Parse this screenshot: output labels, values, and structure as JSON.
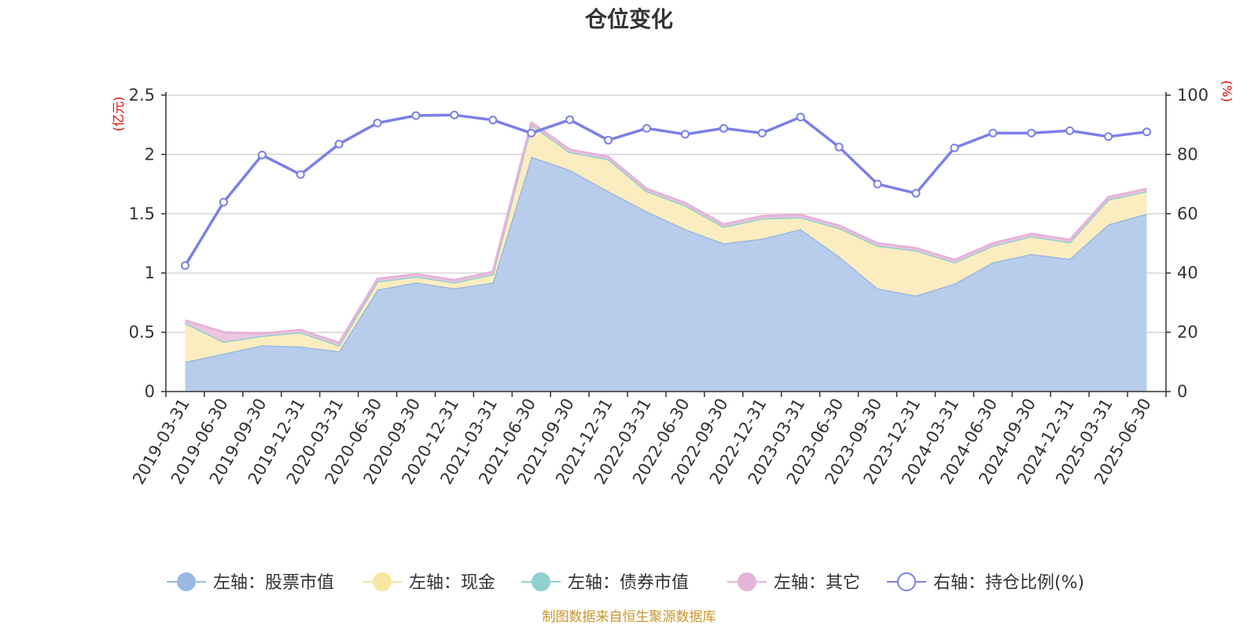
{
  "chart_data": {
    "type": "area",
    "title": "仓位变化",
    "left_unit": "(亿元)",
    "right_unit": "(%)",
    "source": "制图数据来自恒生聚源数据库",
    "categories": [
      "2019-03-31",
      "2019-06-30",
      "2019-09-30",
      "2019-12-31",
      "2020-03-31",
      "2020-06-30",
      "2020-09-30",
      "2020-12-31",
      "2021-03-31",
      "2021-06-30",
      "2021-09-30",
      "2021-12-31",
      "2022-03-31",
      "2022-06-30",
      "2022-09-30",
      "2022-12-31",
      "2023-03-31",
      "2023-06-30",
      "2023-09-30",
      "2023-12-31",
      "2024-03-31",
      "2024-06-30",
      "2024-09-30",
      "2024-12-31",
      "2025-03-31",
      "2025-06-30"
    ],
    "ylim_left": [
      0,
      2.5
    ],
    "ylim_right": [
      0,
      100
    ],
    "yticks_left": [
      "0",
      "0.5",
      "1",
      "1.5",
      "2",
      "2.5"
    ],
    "yticks_right": [
      "0",
      "20",
      "40",
      "60",
      "80",
      "100"
    ],
    "grid": true,
    "legend_position": "bottom",
    "series": [
      {
        "name": "左轴：股票市值",
        "axis": "left",
        "kind": "stacked-area",
        "color": "#9bb8e2",
        "fill": "#b7cdeb",
        "values": [
          0.25,
          0.32,
          0.39,
          0.38,
          0.34,
          0.86,
          0.92,
          0.87,
          0.92,
          1.98,
          1.87,
          1.69,
          1.52,
          1.37,
          1.25,
          1.29,
          1.37,
          1.14,
          0.87,
          0.81,
          0.91,
          1.09,
          1.16,
          1.12,
          1.41,
          1.5
        ]
      },
      {
        "name": "左轴：现金",
        "axis": "left",
        "kind": "stacked-area",
        "color": "#f5e6a0",
        "fill": "#fbedc0",
        "values": [
          0.33,
          0.1,
          0.08,
          0.12,
          0.05,
          0.07,
          0.05,
          0.05,
          0.07,
          0.27,
          0.15,
          0.27,
          0.17,
          0.2,
          0.14,
          0.17,
          0.1,
          0.24,
          0.36,
          0.38,
          0.18,
          0.14,
          0.15,
          0.14,
          0.21,
          0.19
        ]
      },
      {
        "name": "左轴：债券市值",
        "axis": "left",
        "kind": "stacked-area",
        "color": "#8fd0d0",
        "fill": "#bfe4e4",
        "values": [
          0,
          0,
          0,
          0,
          0,
          0,
          0,
          0,
          0,
          0,
          0,
          0,
          0,
          0,
          0,
          0,
          0,
          0,
          0,
          0,
          0,
          0,
          0,
          0,
          0,
          0
        ]
      },
      {
        "name": "左轴：其它",
        "axis": "left",
        "kind": "stacked-area",
        "color": "#e6b3d9",
        "fill": "#edc6e2",
        "values": [
          0.02,
          0.08,
          0.02,
          0.02,
          0.02,
          0.02,
          0.02,
          0.02,
          0.02,
          0.02,
          0.02,
          0.02,
          0.02,
          0.02,
          0.02,
          0.02,
          0.02,
          0.02,
          0.02,
          0.02,
          0.02,
          0.02,
          0.02,
          0.02,
          0.02,
          0.02
        ]
      },
      {
        "name": "右轴：持仓比例(%)",
        "axis": "right",
        "kind": "line",
        "color": "#7b7fe8",
        "values": [
          42.5,
          63.9,
          79.8,
          73.2,
          83.5,
          90.6,
          93.1,
          93.3,
          91.6,
          87.2,
          91.7,
          84.8,
          88.8,
          86.8,
          88.8,
          87.2,
          92.6,
          82.5,
          70.0,
          66.9,
          82.2,
          87.2,
          87.2,
          88.0,
          86.0,
          87.6
        ]
      }
    ]
  }
}
